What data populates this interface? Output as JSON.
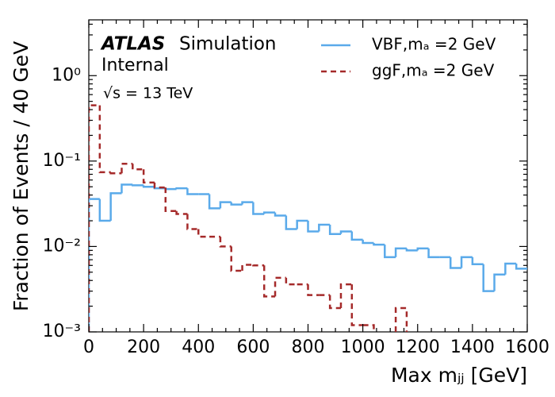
{
  "chart_data": {
    "type": "histogram",
    "xlabel": "Max mⱼⱼ [GeV]",
    "ylabel": "Fraction of Events / 40 GeV",
    "annotations": {
      "experiment": "ATLAS",
      "status": "Simulation",
      "internal": "Internal",
      "energy": "√s = 13 TeV"
    },
    "bins": [
      0,
      40,
      80,
      120,
      160,
      200,
      240,
      280,
      320,
      360,
      400,
      440,
      480,
      520,
      560,
      600,
      640,
      680,
      720,
      760,
      800,
      840,
      880,
      920,
      960,
      1000,
      1040,
      1080,
      1120,
      1160,
      1200,
      1240,
      1280,
      1320,
      1360,
      1400,
      1440,
      1480,
      1520,
      1560,
      1600
    ],
    "series": [
      {
        "name": "VBF,mₐ =2 GeV",
        "color": "#5aaaea",
        "dashed": false,
        "values": [
          0.036,
          0.02,
          0.042,
          0.053,
          0.052,
          0.05,
          0.048,
          0.047,
          0.048,
          0.041,
          0.041,
          0.028,
          0.033,
          0.031,
          0.033,
          0.024,
          0.025,
          0.023,
          0.016,
          0.02,
          0.015,
          0.018,
          0.014,
          0.015,
          0.012,
          0.011,
          0.0105,
          0.0075,
          0.0095,
          0.009,
          0.0095,
          0.0075,
          0.0075,
          0.0056,
          0.0075,
          0.0062,
          0.003,
          0.0047,
          0.0063,
          0.0055
        ]
      },
      {
        "name": "ggF,mₐ =2 GeV",
        "color": "#a52a2a",
        "dashed": true,
        "values": [
          0.45,
          0.074,
          0.072,
          0.093,
          0.08,
          0.056,
          0.049,
          0.026,
          0.024,
          0.016,
          0.013,
          0.013,
          0.01,
          0.0052,
          0.0061,
          0.006,
          0.0026,
          0.0043,
          0.0036,
          0.0036,
          0.0027,
          0.0027,
          0.0019,
          0.0036,
          0.0012,
          0.0012,
          null,
          null,
          0.0019,
          null,
          null,
          null,
          null,
          null,
          null,
          null,
          null,
          null,
          null,
          null
        ]
      }
    ],
    "xlim": [
      0,
      1600
    ],
    "xticks": [
      0,
      200,
      400,
      600,
      800,
      1000,
      1200,
      1400,
      1600
    ],
    "ylim": [
      0.001,
      4.5
    ],
    "yticks": [
      {
        "value": 0.001,
        "label": "10⁻³"
      },
      {
        "value": 0.01,
        "label": "10⁻²"
      },
      {
        "value": 0.1,
        "label": "10⁻¹"
      },
      {
        "value": 1,
        "label": "10⁰"
      }
    ],
    "log_y": true,
    "legend": "upper right"
  }
}
